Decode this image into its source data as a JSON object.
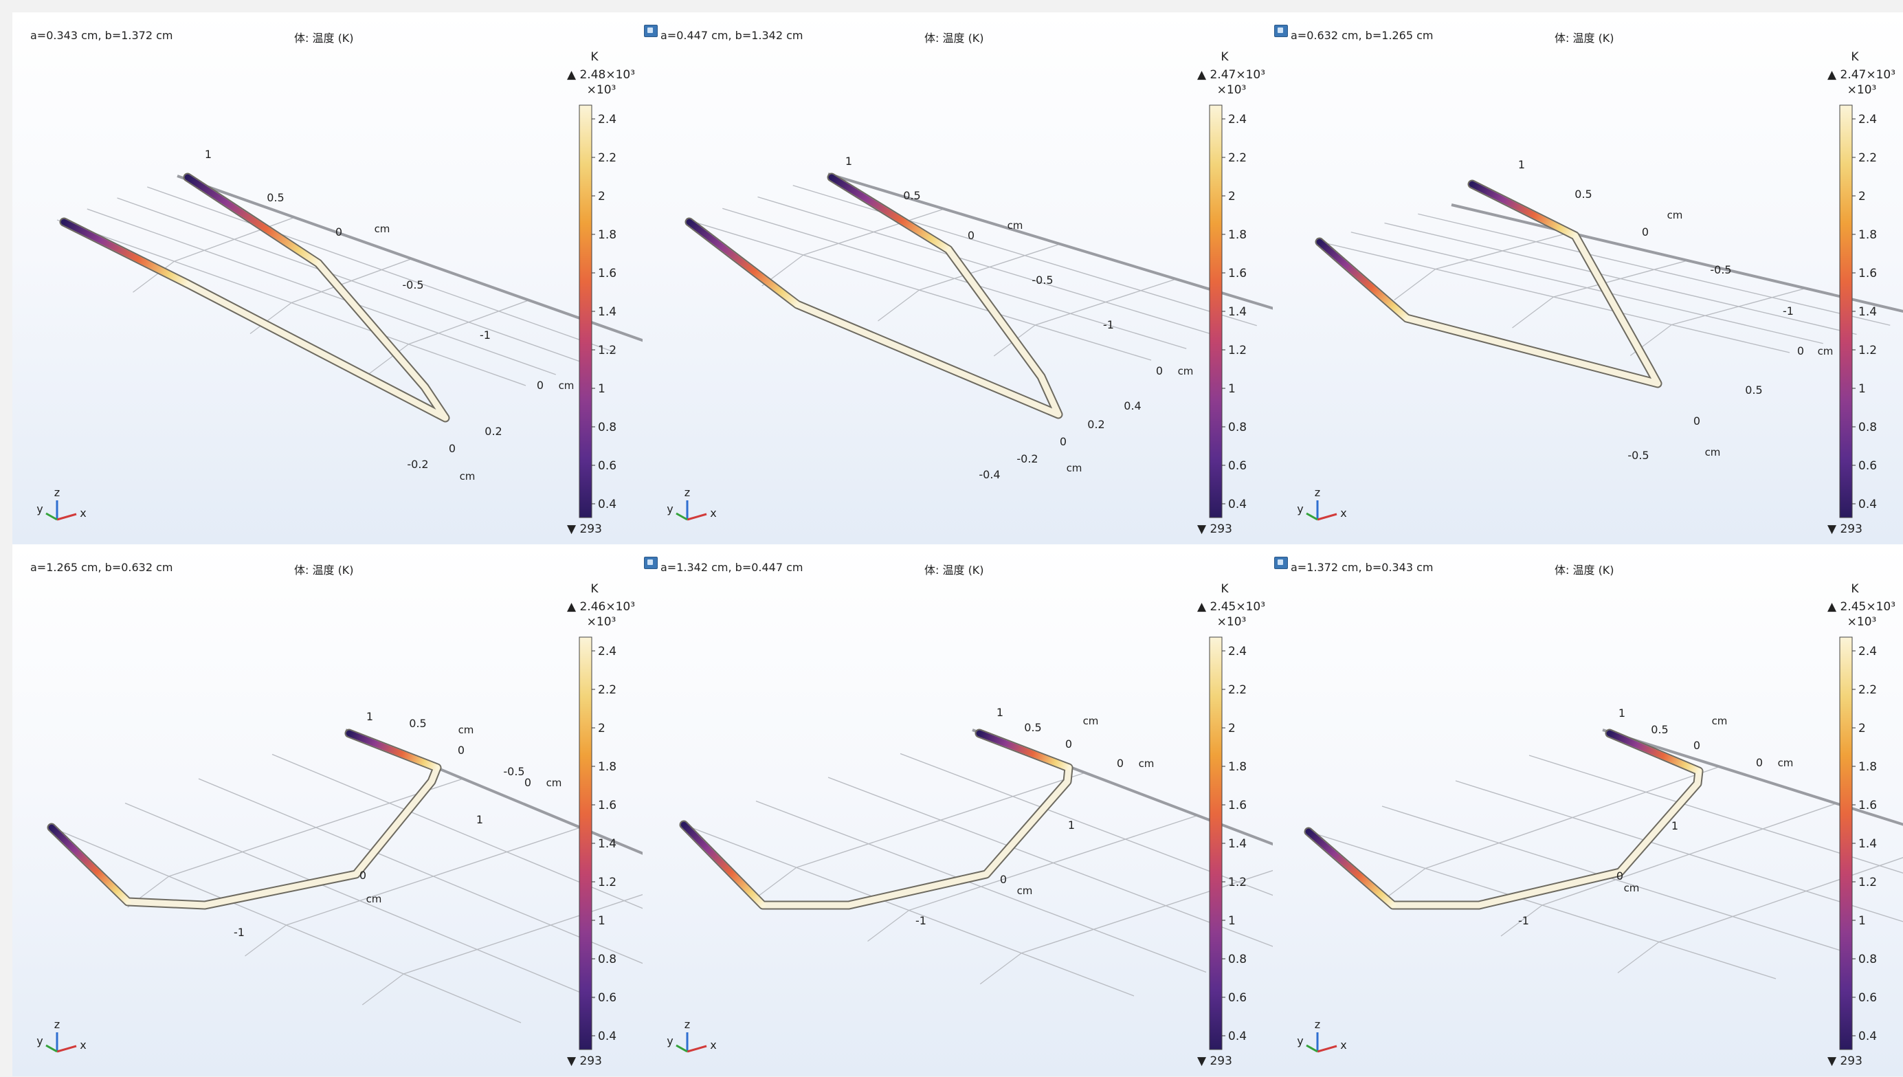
{
  "expression_label": "体: 温度 (K)",
  "axis_unit": "cm",
  "colorbar": {
    "unit": "K",
    "multiplier": "×10³",
    "ticks": [
      "2.4",
      "2.2",
      "2",
      "1.8",
      "1.6",
      "1.4",
      "1.2",
      "1",
      "0.8",
      "0.6",
      "0.4"
    ],
    "min_label": "▼ 293",
    "stops": [
      "#2a1a5e",
      "#5a2d8c",
      "#8e3c8e",
      "#c2456c",
      "#e8683e",
      "#f0a13a",
      "#f3d47a",
      "#fbf4d8"
    ]
  },
  "triad": {
    "x": "x",
    "y": "y",
    "z": "z"
  },
  "panels": [
    {
      "title": "a=0.343 cm, b=1.372 cm",
      "max_label": "▲ 2.48×10³",
      "top_ticks": [
        "1",
        "0.5",
        "0",
        "-0.5",
        "-1"
      ],
      "side_ticks": [
        "0"
      ],
      "front_ticks": [
        "0.2",
        "0",
        "-0.2"
      ]
    },
    {
      "title": "a=0.447 cm, b=1.342 cm",
      "max_label": "▲ 2.47×10³",
      "top_ticks": [
        "1",
        "0.5",
        "0",
        "-0.5",
        "-1"
      ],
      "side_ticks": [
        "0"
      ],
      "front_ticks": [
        "0.4",
        "0.2",
        "0",
        "-0.2",
        "-0.4"
      ]
    },
    {
      "title": "a=0.632 cm, b=1.265 cm",
      "max_label": "▲ 2.47×10³",
      "top_ticks": [
        "1",
        "0.5",
        "0",
        "-0.5",
        "-1"
      ],
      "side_ticks": [
        "0"
      ],
      "front_ticks": [
        "0.5",
        "0",
        "-0.5"
      ]
    },
    {
      "title": "a=1.265 cm, b=0.632 cm",
      "max_label": "▲ 2.46×10³",
      "top_ticks": [
        "1",
        "0.5",
        "0",
        "-0.5"
      ],
      "side_ticks": [
        "0"
      ],
      "front_ticks": [
        "1",
        "0",
        "-1"
      ]
    },
    {
      "title": "a=1.342 cm, b=0.447 cm",
      "max_label": "▲ 2.45×10³",
      "top_ticks": [
        "1",
        "0.5",
        "0"
      ],
      "side_ticks": [
        "0"
      ],
      "front_ticks": [
        "1",
        "0",
        "-1"
      ]
    },
    {
      "title": "a=1.372 cm, b=0.343 cm",
      "max_label": "▲ 2.45×10³",
      "top_ticks": [
        "1",
        "0.5",
        "0"
      ],
      "side_ticks": [
        "0"
      ],
      "front_ticks": [
        "1",
        "0",
        "-1"
      ]
    }
  ]
}
